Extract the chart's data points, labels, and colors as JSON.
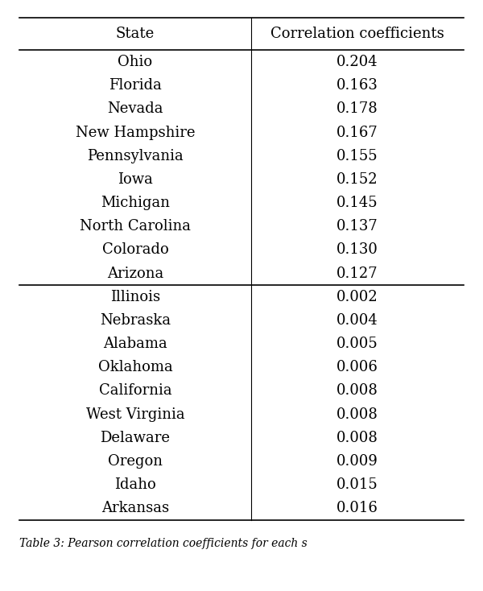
{
  "col1_header": "State",
  "col2_header": "Correlation coefficients",
  "rows_top": [
    [
      "Ohio",
      "0.204"
    ],
    [
      "Florida",
      "0.163"
    ],
    [
      "Nevada",
      "0.178"
    ],
    [
      "New Hampshire",
      "0.167"
    ],
    [
      "Pennsylvania",
      "0.155"
    ],
    [
      "Iowa",
      "0.152"
    ],
    [
      "Michigan",
      "0.145"
    ],
    [
      "North Carolina",
      "0.137"
    ],
    [
      "Colorado",
      "0.130"
    ],
    [
      "Arizona",
      "0.127"
    ]
  ],
  "rows_bottom": [
    [
      "Illinois",
      "0.002"
    ],
    [
      "Nebraska",
      "0.004"
    ],
    [
      "Alabama",
      "0.005"
    ],
    [
      "Oklahoma",
      "0.006"
    ],
    [
      "California",
      "0.008"
    ],
    [
      "West Virginia",
      "0.008"
    ],
    [
      "Delaware",
      "0.008"
    ],
    [
      "Oregon",
      "0.009"
    ],
    [
      "Idaho",
      "0.015"
    ],
    [
      "Arkansas",
      "0.016"
    ]
  ],
  "caption": "Table 3: Pearson correlation coefficients for each s",
  "background_color": "#ffffff",
  "font_size": 13,
  "header_font_size": 13,
  "figsize": [
    6.0,
    7.34
  ],
  "dpi": 100
}
